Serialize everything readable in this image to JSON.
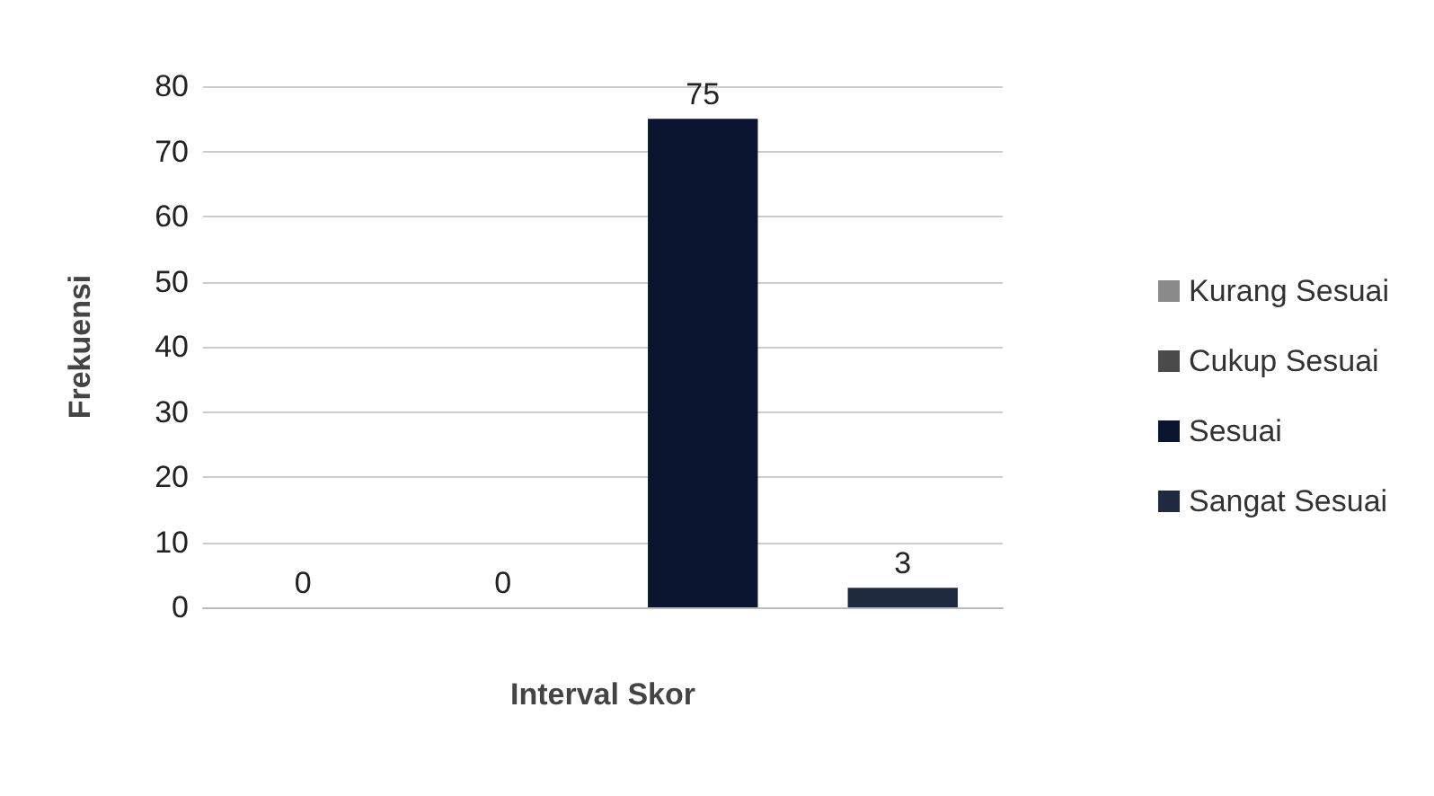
{
  "chart_data": {
    "type": "bar",
    "xlabel": "Interval Skor",
    "ylabel": "Frekuensi",
    "categories": [
      null,
      null,
      null,
      null
    ],
    "series": [
      {
        "name": "Kurang Sesuai",
        "color": "#8a8a8a",
        "values": [
          0,
          null,
          null,
          null
        ]
      },
      {
        "name": "Cukup Sesuai",
        "color": "#4a4a4a",
        "values": [
          null,
          0,
          null,
          null
        ]
      },
      {
        "name": "Sesuai",
        "color": "#0b1530",
        "values": [
          null,
          null,
          75,
          null
        ]
      },
      {
        "name": "Sangat Sesuai",
        "color": "#1f2a40",
        "values": [
          null,
          null,
          null,
          3
        ]
      }
    ],
    "ylim": [
      0,
      80
    ],
    "yticks": [
      0,
      10,
      20,
      30,
      40,
      50,
      60,
      70,
      80
    ],
    "grid": "y",
    "legend": "right",
    "data_labels": true
  }
}
